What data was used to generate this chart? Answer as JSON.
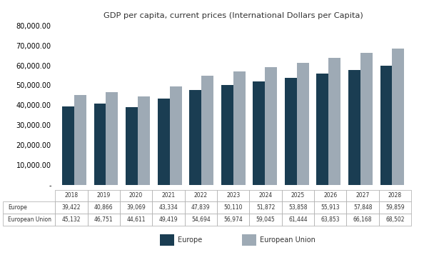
{
  "title": "GDP per capita, current prices (International Dollars per Capita)",
  "years": [
    2018,
    2019,
    2020,
    2021,
    2022,
    2023,
    2024,
    2025,
    2026,
    2027,
    2028
  ],
  "europe": [
    39422,
    40866,
    39069,
    43334,
    47839,
    50110,
    51872,
    53858,
    55913,
    57848,
    59859
  ],
  "eu": [
    45132,
    46751,
    44611,
    49419,
    54694,
    56974,
    59045,
    61444,
    63853,
    66168,
    68502
  ],
  "europe_color": "#1a3d52",
  "eu_color": "#9eaab5",
  "background_color": "#ffffff",
  "ylim": [
    0,
    80000
  ],
  "yticks": [
    0,
    10000,
    20000,
    30000,
    40000,
    50000,
    60000,
    70000,
    80000
  ],
  "legend_labels": [
    "Europe",
    "European Union"
  ],
  "table_rows": [
    [
      "Europe",
      "39,422",
      "40,866",
      "39,069",
      "43,334",
      "47,839",
      "50,110",
      "51,872",
      "53,858",
      "55,913",
      "57,848",
      "59,859"
    ],
    [
      "European Union",
      "45,132",
      "46,751",
      "44,611",
      "49,419",
      "54,694",
      "56,974",
      "59,045",
      "61,444",
      "63,853",
      "66,168",
      "68,502"
    ]
  ]
}
